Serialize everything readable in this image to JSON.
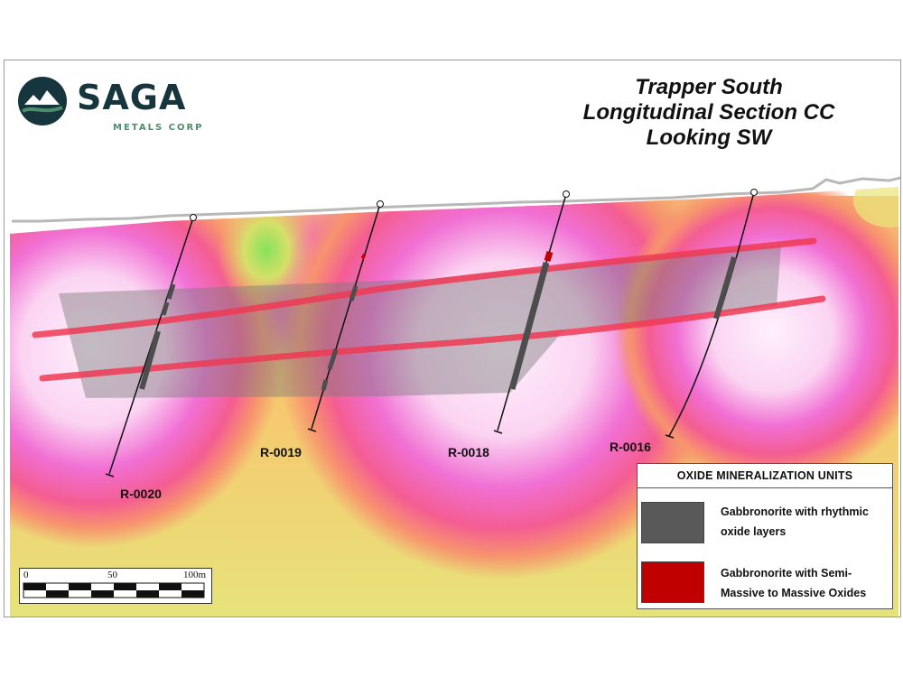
{
  "logo": {
    "name": "SAGA",
    "subtitle": "METALS CORP"
  },
  "title": {
    "line1": "Trapper South",
    "line2": "Longitudinal Section CC",
    "line3": "Looking SW"
  },
  "drill_holes": [
    {
      "id": "R-0020"
    },
    {
      "id": "R-0019"
    },
    {
      "id": "R-0018"
    },
    {
      "id": "R-0016"
    }
  ],
  "legend": {
    "title": "OXIDE MINERALIZATION UNITS",
    "items": [
      {
        "label_line1": "Gabbronorite with rhythmic",
        "label_line2": "oxide layers",
        "color": "#595959"
      },
      {
        "label_line1": "Gabbronorite with Semi-",
        "label_line2": "Massive to Massive Oxides",
        "color": "#c00000"
      }
    ]
  },
  "scale": {
    "labels": [
      "0",
      "50",
      "100m"
    ]
  },
  "colors": {
    "brand_dark": "#17353d",
    "brand_green": "#4e8d6c",
    "background_low": "#f2d96e",
    "background_high": "#ee55c8",
    "core_high": "#fbdcf6",
    "anomaly_low": "#9bdc6a",
    "red_horizon": "#ef3a54",
    "grey_unit": "#7d7d7d"
  }
}
